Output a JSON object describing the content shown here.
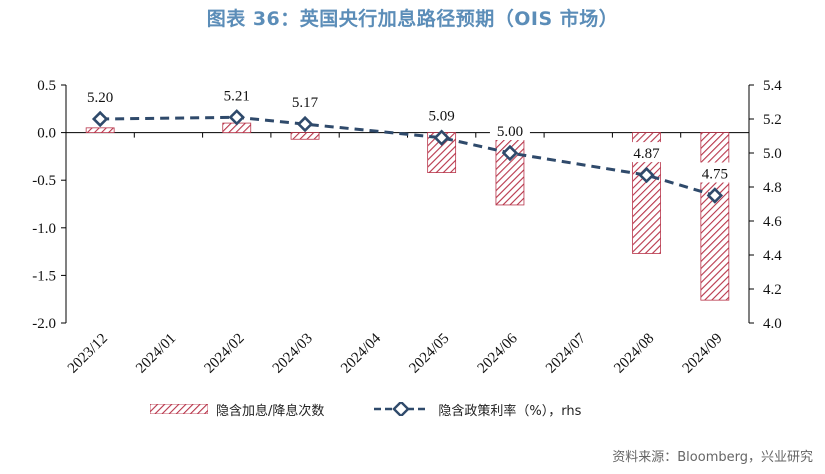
{
  "title": "图表 36：英国央行加息路径预期（OIS 市场）",
  "source": "资料来源：Bloomberg，兴业研究",
  "colors": {
    "title": "#5b8db8",
    "bar_stroke": "#b8354a",
    "line": "#2f4a6b",
    "axis": "#000000"
  },
  "chart_data": {
    "type": "bar+line",
    "categories": [
      "2023/12",
      "2024/01",
      "2024/02",
      "2024/03",
      "2024/04",
      "2024/05",
      "2024/06",
      "2024/07",
      "2024/08",
      "2024/09"
    ],
    "series": [
      {
        "name": "隐含加息/降息次数",
        "type": "bar",
        "axis": "left",
        "pattern": "diagonal-hatch",
        "values": [
          0.05,
          0,
          0.1,
          -0.07,
          0,
          -0.42,
          -0.76,
          0,
          -1.27,
          -1.76
        ]
      },
      {
        "name": "隐含政策利率（%），rhs",
        "type": "line",
        "axis": "right",
        "style": "dashed",
        "marker": "diamond",
        "points": [
          {
            "x": "2023/12",
            "y": 5.2,
            "label": "5.20"
          },
          {
            "x": "2024/02",
            "y": 5.21,
            "label": "5.21"
          },
          {
            "x": "2024/03",
            "y": 5.17,
            "label": "5.17"
          },
          {
            "x": "2024/05",
            "y": 5.09,
            "label": "5.09"
          },
          {
            "x": "2024/06",
            "y": 5.0,
            "label": "5.00"
          },
          {
            "x": "2024/08",
            "y": 4.87,
            "label": "4.87"
          },
          {
            "x": "2024/09",
            "y": 4.75,
            "label": "4.75"
          }
        ]
      }
    ],
    "ylim_left": [
      -2.0,
      0.5
    ],
    "yticks_left": [
      "0.5",
      "0.0",
      "-0.5",
      "-1.0",
      "-1.5",
      "-2.0"
    ],
    "ylim_right": [
      4.0,
      5.4
    ],
    "yticks_right": [
      "5.4",
      "5.2",
      "5.0",
      "4.8",
      "4.6",
      "4.4",
      "4.2",
      "4.0"
    ],
    "grid": false,
    "legend_position": "bottom"
  }
}
